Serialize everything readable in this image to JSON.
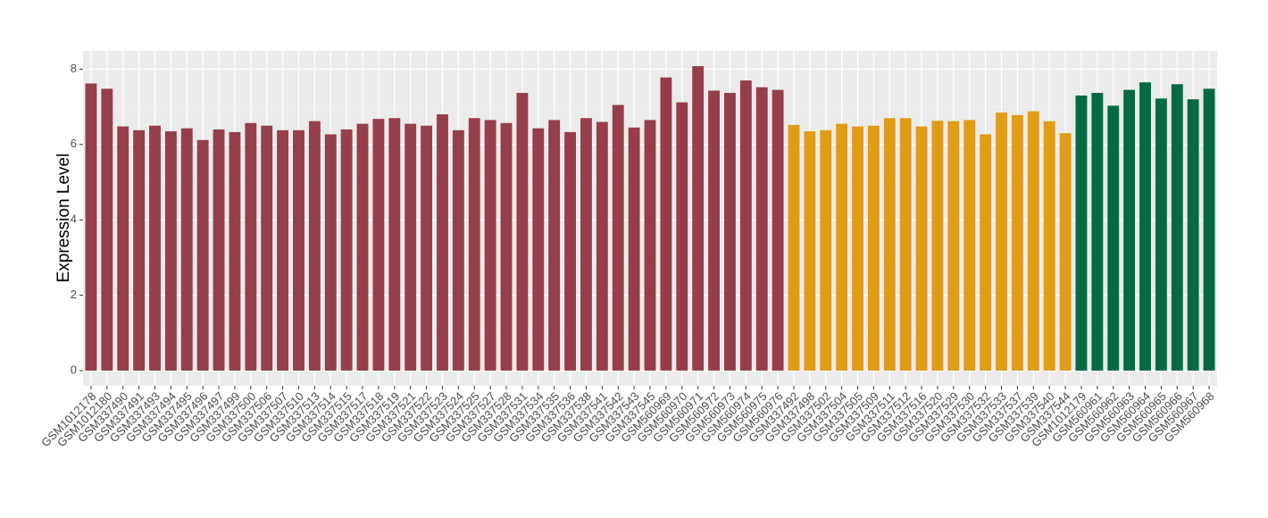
{
  "chart_data": {
    "type": "bar",
    "y_label": "Expression Level",
    "ylim": [
      -0.404,
      8.484
    ],
    "yticks": [
      0,
      2,
      4,
      6,
      8
    ],
    "grid": true,
    "series": [
      {
        "color": "#963e4c",
        "categories": [
          "GSM1012178",
          "GSM1012180",
          "GSM337490",
          "GSM337491",
          "GSM337493",
          "GSM337494",
          "GSM337495",
          "GSM337496",
          "GSM337497",
          "GSM337499",
          "GSM337500",
          "GSM337506",
          "GSM337507",
          "GSM337510",
          "GSM337513",
          "GSM337514",
          "GSM337515",
          "GSM337517",
          "GSM337518",
          "GSM337519",
          "GSM337521",
          "GSM337522",
          "GSM337523",
          "GSM337524",
          "GSM337525",
          "GSM337527",
          "GSM337528",
          "GSM337531",
          "GSM337534",
          "GSM337535",
          "GSM337536",
          "GSM337538",
          "GSM337541",
          "GSM337542",
          "GSM337543",
          "GSM337545",
          "GSM560969",
          "GSM560970",
          "GSM560971",
          "GSM560972",
          "GSM560973",
          "GSM560974",
          "GSM560975",
          "GSM560976"
        ],
        "values": [
          7.62,
          7.48,
          6.48,
          6.38,
          6.5,
          6.35,
          6.43,
          6.12,
          6.4,
          6.33,
          6.57,
          6.5,
          6.38,
          6.38,
          6.62,
          6.27,
          6.4,
          6.55,
          6.68,
          6.7,
          6.55,
          6.5,
          6.8,
          6.38,
          6.7,
          6.65,
          6.57,
          7.37,
          6.43,
          6.65,
          6.33,
          6.7,
          6.6,
          7.05,
          6.45,
          6.65,
          7.78,
          7.12,
          8.08,
          7.43,
          7.37,
          7.7,
          7.52,
          7.45
        ]
      },
      {
        "color": "#df9c17",
        "categories": [
          "GSM337492",
          "GSM337498",
          "GSM337502",
          "GSM337504",
          "GSM337505",
          "GSM337509",
          "GSM337511",
          "GSM337512",
          "GSM337516",
          "GSM337520",
          "GSM337529",
          "GSM337530",
          "GSM337532",
          "GSM337533",
          "GSM337537",
          "GSM337539",
          "GSM337540",
          "GSM337544"
        ],
        "values": [
          6.52,
          6.35,
          6.38,
          6.55,
          6.48,
          6.5,
          6.7,
          6.7,
          6.48,
          6.63,
          6.62,
          6.65,
          6.27,
          6.85,
          6.78,
          6.88,
          6.62,
          6.3
        ]
      },
      {
        "color": "#046a42",
        "categories": [
          "GSM1012179",
          "GSM560961",
          "GSM560962",
          "GSM560963",
          "GSM560964",
          "GSM560965",
          "GSM560966",
          "GSM560967",
          "GSM560968"
        ],
        "values": [
          7.3,
          7.37,
          7.03,
          7.45,
          7.65,
          7.22,
          7.6,
          7.2,
          7.48
        ]
      }
    ]
  }
}
